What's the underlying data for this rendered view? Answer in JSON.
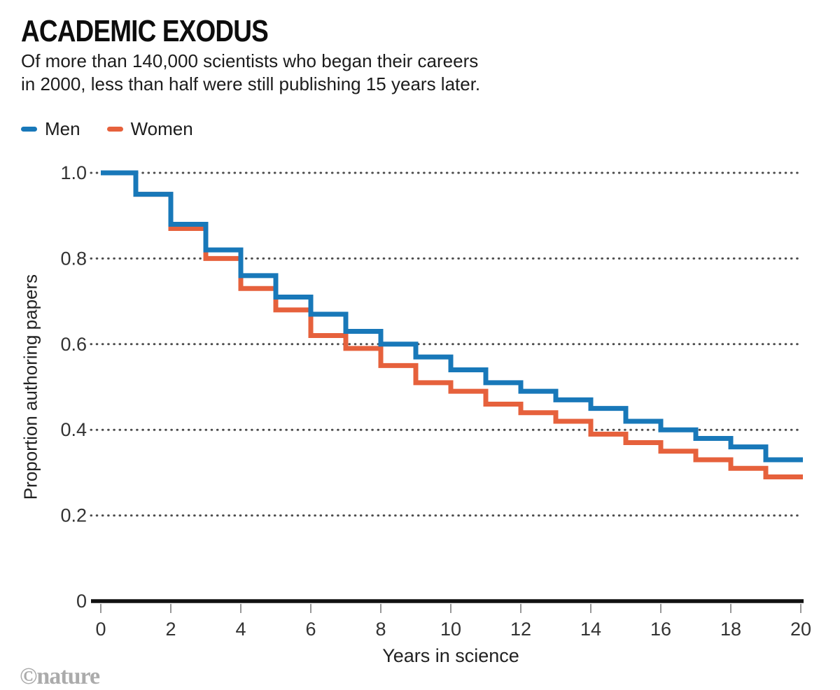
{
  "header": {
    "title": "ACADEMIC EXODUS",
    "subtitle_line1": "Of more than 140,000 scientists who began their careers",
    "subtitle_line2": "in 2000, less than half were still publishing 15 years later."
  },
  "watermark": "©nature",
  "colors": {
    "men_blue": "#1878b9",
    "women_orange": "#e6613c",
    "grid_dots": "#4c4c4c",
    "axis_line": "#111111",
    "tick_mark": "#999999",
    "tick_label": "#333333",
    "text": "#1c1c1c",
    "watermark_gray": "#ababab"
  },
  "chart_data": {
    "type": "line",
    "subtype": "step-survival-curve",
    "title": "ACADEMIC EXODUS",
    "xlabel": "Years in science",
    "ylabel": "Proportion authoring papers",
    "xlim": [
      0,
      20
    ],
    "ylim": [
      0,
      1.0
    ],
    "x_ticks": [
      0,
      2,
      4,
      6,
      8,
      10,
      12,
      14,
      16,
      18,
      20
    ],
    "y_ticks": [
      "1.0",
      "0.8",
      "0.6",
      "0.4",
      "0.2",
      "0"
    ],
    "y_tick_values": [
      1.0,
      0.8,
      0.6,
      0.4,
      0.2,
      0
    ],
    "grid": "horizontal-dotted",
    "legend_position": "top-left",
    "step_start_years": [
      0,
      1,
      2,
      3,
      4,
      5,
      6,
      7,
      8,
      9,
      10,
      11,
      12,
      13,
      14,
      15,
      16,
      17,
      18,
      19
    ],
    "series": [
      {
        "name": "Men",
        "color": "#1878b9",
        "values": [
          1.0,
          0.95,
          0.88,
          0.82,
          0.76,
          0.71,
          0.67,
          0.63,
          0.6,
          0.57,
          0.54,
          0.51,
          0.49,
          0.47,
          0.45,
          0.42,
          0.4,
          0.38,
          0.36,
          0.33
        ]
      },
      {
        "name": "Women",
        "color": "#e6613c",
        "values": [
          1.0,
          0.95,
          0.87,
          0.8,
          0.73,
          0.68,
          0.62,
          0.59,
          0.55,
          0.51,
          0.49,
          0.46,
          0.44,
          0.42,
          0.39,
          0.37,
          0.35,
          0.33,
          0.31,
          0.29
        ]
      }
    ]
  }
}
